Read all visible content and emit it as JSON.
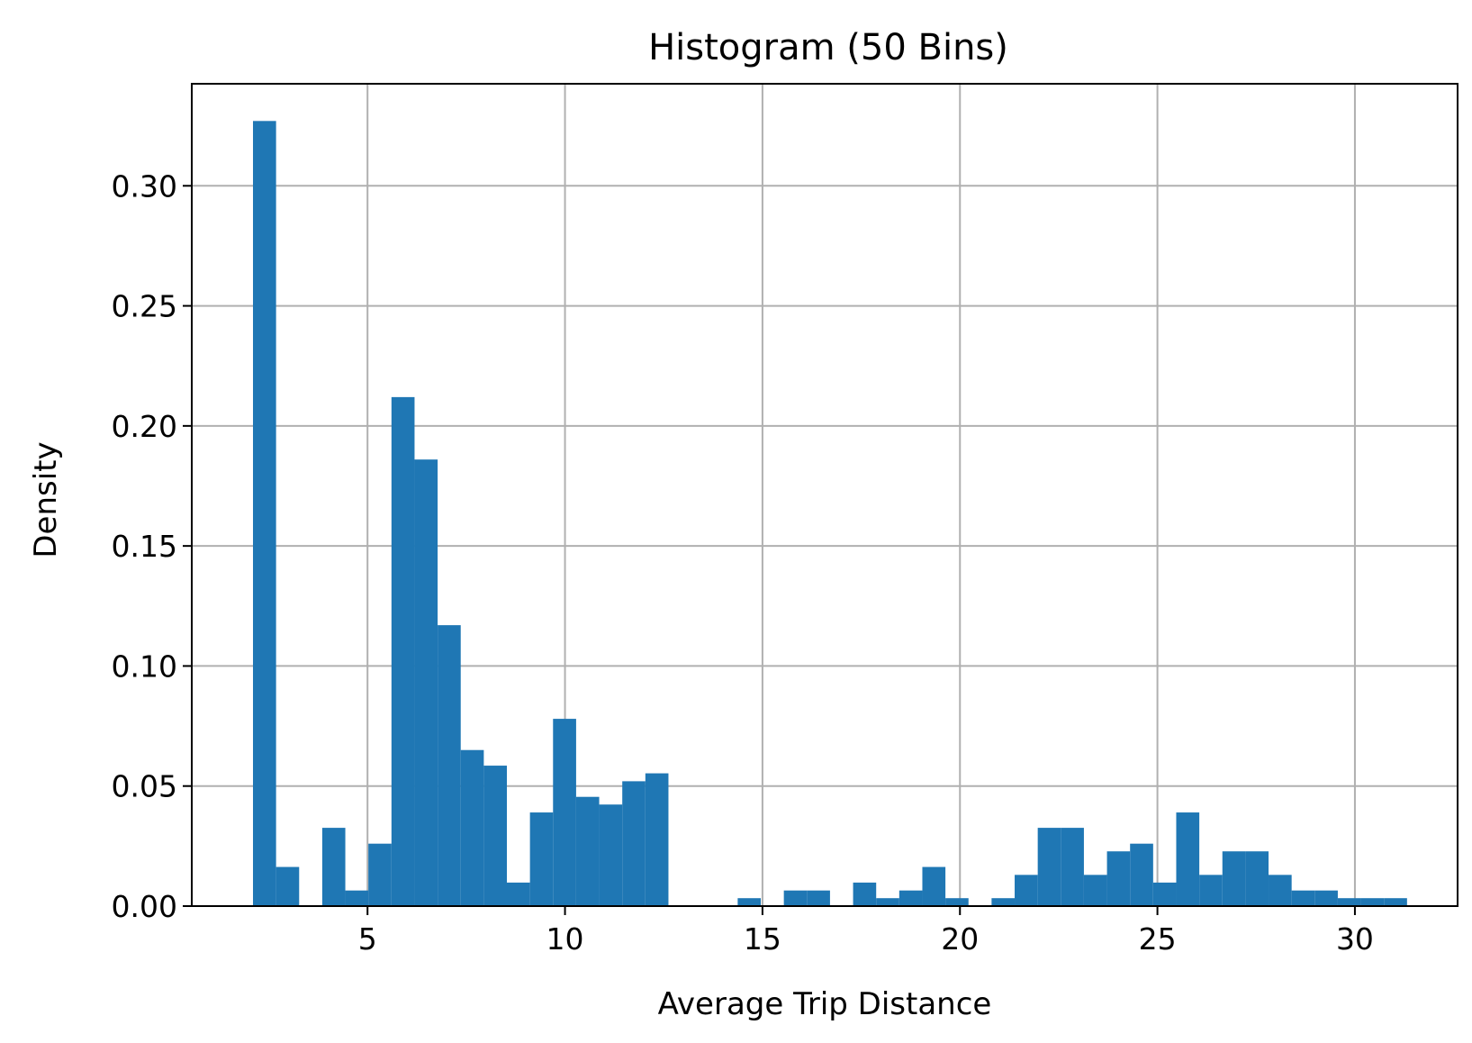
{
  "chart_data": {
    "type": "bar",
    "title": "Histogram (50 Bins)",
    "xlabel": "Average Trip Distance",
    "ylabel": "Density",
    "xlim": [
      0.55,
      32.6
    ],
    "ylim": [
      0,
      0.3425
    ],
    "xticks": [
      5,
      10,
      15,
      20,
      25,
      30
    ],
    "xtick_labels": [
      "5",
      "10",
      "15",
      "20",
      "25",
      "30"
    ],
    "yticks": [
      0.0,
      0.05,
      0.1,
      0.15,
      0.2,
      0.25,
      0.3
    ],
    "ytick_labels": [
      "0.00",
      "0.05",
      "0.10",
      "0.15",
      "0.20",
      "0.25",
      "0.30"
    ],
    "grid": true,
    "bar_color": "#1f77b4",
    "bin_start": 2.1,
    "bin_width": 0.5844,
    "series": [
      {
        "name": "Density",
        "values": [
          0.327,
          0.0163,
          0,
          0.0326,
          0.0065,
          0.026,
          0.212,
          0.186,
          0.117,
          0.065,
          0.0585,
          0.0098,
          0.039,
          0.078,
          0.0455,
          0.0423,
          0.052,
          0.0553,
          0,
          0,
          0,
          0.0033,
          0,
          0.0065,
          0.0065,
          0,
          0.0098,
          0.0033,
          0.0065,
          0.0163,
          0.0033,
          0,
          0.0033,
          0.013,
          0.0326,
          0.0326,
          0.013,
          0.0228,
          0.026,
          0.0098,
          0.039,
          0.013,
          0.0228,
          0.0228,
          0.013,
          0.0065,
          0.0065,
          0.0033,
          0.0033,
          0.0033
        ]
      }
    ]
  }
}
